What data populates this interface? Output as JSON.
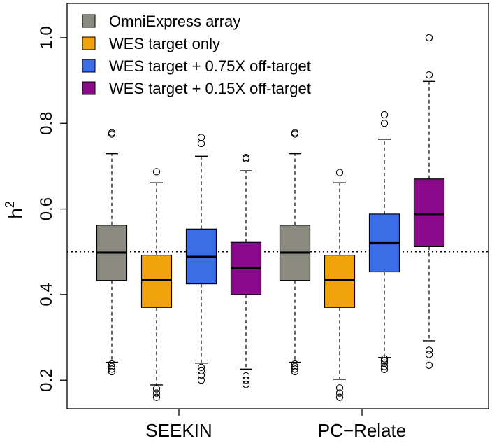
{
  "chart_data": {
    "type": "boxplot",
    "title": "",
    "xlabel": "",
    "ylabel": "h",
    "ylabel_superscript": "2",
    "ylim": [
      0.1333,
      1.08
    ],
    "yticks": [
      0.2,
      0.4,
      0.6,
      0.8,
      1.0
    ],
    "ytick_labels": [
      "0.2",
      "0.4",
      "0.6",
      "0.8",
      "1.0"
    ],
    "reference_line": 0.5,
    "groups": [
      "SEEKIN",
      "PC−Relate"
    ],
    "series": [
      {
        "name": "OmniExpress array",
        "color": "#8a8a7e",
        "boxes": [
          {
            "q1": 0.433,
            "median": 0.498,
            "q3": 0.562,
            "whisker_low": 0.242,
            "whisker_high": 0.729,
            "outliers": [
              0.775,
              0.778,
              0.238,
              0.232,
              0.226,
              0.22
            ]
          },
          {
            "q1": 0.433,
            "median": 0.498,
            "q3": 0.562,
            "whisker_low": 0.242,
            "whisker_high": 0.729,
            "outliers": [
              0.775,
              0.778,
              0.238,
              0.232,
              0.226,
              0.22
            ]
          }
        ]
      },
      {
        "name": "WES target only",
        "color": "#f0a30a",
        "boxes": [
          {
            "q1": 0.37,
            "median": 0.434,
            "q3": 0.492,
            "whisker_low": 0.189,
            "whisker_high": 0.661,
            "outliers": [
              0.687,
              0.18,
              0.17,
              0.16
            ]
          },
          {
            "q1": 0.37,
            "median": 0.434,
            "q3": 0.492,
            "whisker_low": 0.202,
            "whisker_high": 0.661,
            "outliers": [
              0.685,
              0.182,
              0.17,
              0.16
            ]
          }
        ]
      },
      {
        "name": "WES target + 0.75X off-target",
        "color": "#3b6ee6",
        "boxes": [
          {
            "q1": 0.425,
            "median": 0.488,
            "q3": 0.553,
            "whisker_low": 0.24,
            "whisker_high": 0.723,
            "outliers": [
              0.767,
              0.753,
              0.23,
              0.222,
              0.212,
              0.2
            ]
          },
          {
            "q1": 0.453,
            "median": 0.52,
            "q3": 0.588,
            "whisker_low": 0.253,
            "whisker_high": 0.763,
            "outliers": [
              0.82,
              0.8,
              0.25,
              0.245,
              0.24,
              0.232,
              0.225
            ]
          }
        ]
      },
      {
        "name": "WES target + 0.15X off-target",
        "color": "#8b0a8b",
        "boxes": [
          {
            "q1": 0.4,
            "median": 0.462,
            "q3": 0.522,
            "whisker_low": 0.226,
            "whisker_high": 0.689,
            "outliers": [
              0.72,
              0.717,
              0.21,
              0.2,
              0.19
            ]
          },
          {
            "q1": 0.512,
            "median": 0.588,
            "q3": 0.67,
            "whisker_low": 0.292,
            "whisker_high": 0.898,
            "outliers": [
              1.0,
              0.913,
              0.27,
              0.26,
              0.235
            ]
          }
        ]
      }
    ],
    "legend_position": "top-left"
  }
}
